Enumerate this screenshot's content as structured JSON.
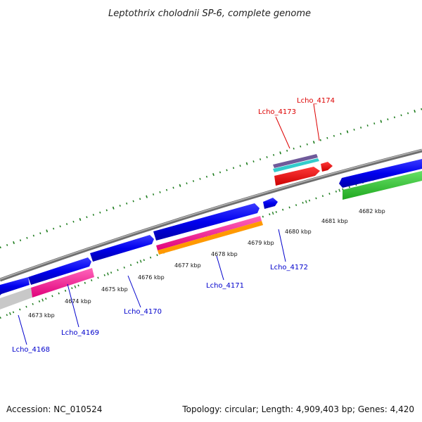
{
  "title": "Leptothrix cholodnii SP-6, complete genome",
  "footer": {
    "accession": "Accession: NC_010524",
    "summary": "Topology: circular; Length: 4,909,403 bp; Genes: 4,420"
  },
  "position_labels": [
    "4673 kbp",
    "4674 kbp",
    "4675 kbp",
    "4676 kbp",
    "4677 kbp",
    "4678 kbp",
    "4679 kbp",
    "4680 kbp",
    "4681 kbp",
    "4682 kbp"
  ],
  "gene_labels": [
    {
      "name": "Lcho_4168",
      "color": "#0000cc"
    },
    {
      "name": "Lcho_4169",
      "color": "#0000cc"
    },
    {
      "name": "Lcho_4170",
      "color": "#0000cc"
    },
    {
      "name": "Lcho_4171",
      "color": "#0000cc"
    },
    {
      "name": "Lcho_4172",
      "color": "#0000cc"
    },
    {
      "name": "Lcho_4173",
      "color": "#dd0000"
    },
    {
      "name": "Lcho_4174",
      "color": "#dd0000"
    }
  ],
  "colors": {
    "backbone": "#8a8a8a",
    "forward_gene": "#0000ee",
    "reverse_gene": "#0000ee",
    "rna_gene": "#ee0000",
    "ticks": "#1a7a1a",
    "magenta_feature": "#ff2a9a",
    "orange_feature": "#ff9900",
    "green_feature": "#33cc33",
    "cyan_feature": "#33cccc",
    "purple_feature": "#6f5a9a",
    "grey_feature": "#c8c8c8"
  }
}
